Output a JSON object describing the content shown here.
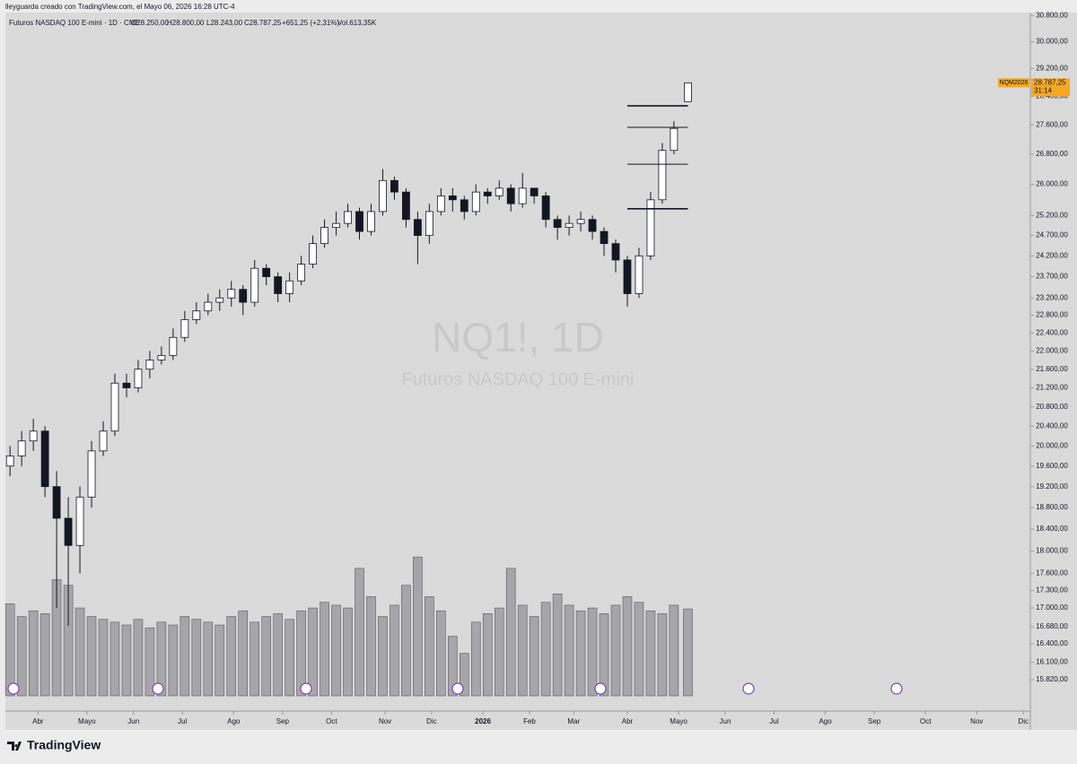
{
  "header": {
    "credit": "lleyguarda creado con TradingView.com, el Mayo 06, 2026 16:28 UTC-4",
    "symbol": "Futuros NASDAQ 100 E-mini · 1D · CME",
    "open": "O28.250,00",
    "high": "H28.800,00",
    "low": "L28.243,00",
    "close": "C28.787,25",
    "change": "+651,25 (+2,31%)",
    "volume": "Vol.613,35K"
  },
  "watermark": {
    "title": "NQ1!, 1D",
    "subtitle": "Futuros NASDAQ 100 E-mini"
  },
  "price_tag": {
    "symbol": "NQM2026",
    "price": "28.787,25",
    "countdown": "31:14"
  },
  "footer": {
    "brand": "TradingView"
  },
  "chart_data": {
    "type": "candlestick",
    "log_scale": true,
    "grid": false,
    "up_color": "#ffffff",
    "down_color": "#131722",
    "volume_color": "#a6a6aa",
    "xlim": [
      -2,
      438
    ],
    "xticks": [
      {
        "value": 12,
        "label": "Abr"
      },
      {
        "value": 33,
        "label": "Mayo"
      },
      {
        "value": 53,
        "label": "Jun"
      },
      {
        "value": 74,
        "label": "Jul"
      },
      {
        "value": 96,
        "label": "Ago"
      },
      {
        "value": 117,
        "label": "Sep"
      },
      {
        "value": 138,
        "label": "Oct"
      },
      {
        "value": 161,
        "label": "Nov"
      },
      {
        "value": 181,
        "label": "Dic"
      },
      {
        "value": 203,
        "label": "2026"
      },
      {
        "value": 223,
        "label": "Feb"
      },
      {
        "value": 242,
        "label": "Mar"
      },
      {
        "value": 265,
        "label": "Abr"
      },
      {
        "value": 287,
        "label": "Mayo"
      },
      {
        "value": 307,
        "label": "Jun"
      },
      {
        "value": 328,
        "label": "Jul"
      },
      {
        "value": 350,
        "label": "Ago"
      },
      {
        "value": 371,
        "label": "Sep"
      },
      {
        "value": 393,
        "label": "Oct"
      },
      {
        "value": 415,
        "label": "Nov"
      },
      {
        "value": 435,
        "label": "Dic"
      }
    ],
    "ylim": [
      15440,
      31000
    ],
    "yticks": [
      {
        "value": 30800,
        "label": "30.800,00"
      },
      {
        "value": 30000,
        "label": "30.000,00"
      },
      {
        "value": 29200,
        "label": "29.200,00"
      },
      {
        "value": 28400,
        "label": "28.400,00"
      },
      {
        "value": 27600,
        "label": "27.600,00"
      },
      {
        "value": 26800,
        "label": "26.800,00"
      },
      {
        "value": 26000,
        "label": "26.000,00"
      },
      {
        "value": 25200,
        "label": "25.200,00"
      },
      {
        "value": 24700,
        "label": "24.700,00"
      },
      {
        "value": 24200,
        "label": "24.200,00"
      },
      {
        "value": 23700,
        "label": "23.700,00"
      },
      {
        "value": 23200,
        "label": "23.200,00"
      },
      {
        "value": 22800,
        "label": "22.800,00"
      },
      {
        "value": 22400,
        "label": "22.400,00"
      },
      {
        "value": 22000,
        "label": "22.000,00"
      },
      {
        "value": 21600,
        "label": "21.600,00"
      },
      {
        "value": 21200,
        "label": "21.200,00"
      },
      {
        "value": 20800,
        "label": "20.800,00"
      },
      {
        "value": 20400,
        "label": "20.400,00"
      },
      {
        "value": 20000,
        "label": "20.000,00"
      },
      {
        "value": 19600,
        "label": "19.600,00"
      },
      {
        "value": 19200,
        "label": "19.200,00"
      },
      {
        "value": 18800,
        "label": "18.800,00"
      },
      {
        "value": 18400,
        "label": "18.400,00"
      },
      {
        "value": 18000,
        "label": "18.000,00"
      },
      {
        "value": 17600,
        "label": "17.600,00"
      },
      {
        "value": 17300,
        "label": "17.300,00"
      },
      {
        "value": 17000,
        "label": "17.000,00"
      },
      {
        "value": 16680,
        "label": "16.680,00"
      },
      {
        "value": 16400,
        "label": "16.400,00"
      },
      {
        "value": 16100,
        "label": "16.100,00"
      },
      {
        "value": 15820,
        "label": "15.820,00"
      }
    ],
    "volume_lim": [
      0,
      1000
    ],
    "x": [
      0,
      5,
      10,
      15,
      20,
      25,
      30,
      35,
      40,
      45,
      50,
      55,
      60,
      65,
      70,
      75,
      80,
      85,
      90,
      95,
      100,
      105,
      110,
      115,
      120,
      125,
      130,
      135,
      140,
      145,
      150,
      155,
      160,
      165,
      170,
      175,
      180,
      185,
      190,
      195,
      200,
      205,
      210,
      215,
      220,
      225,
      230,
      235,
      240,
      245,
      250,
      255,
      260,
      265,
      270,
      275,
      280,
      285,
      291
    ],
    "open": [
      19600,
      19800,
      20100,
      20300,
      19200,
      18600,
      18100,
      19000,
      19900,
      20300,
      21300,
      21200,
      21600,
      21800,
      21900,
      22300,
      22700,
      22900,
      23100,
      23200,
      23400,
      23100,
      23900,
      23700,
      23300,
      23600,
      24000,
      24500,
      24900,
      25000,
      25300,
      24800,
      25300,
      26100,
      25800,
      25100,
      24700,
      25300,
      25700,
      25600,
      25300,
      25800,
      25700,
      25900,
      25500,
      25900,
      25700,
      25100,
      24900,
      25000,
      25100,
      24800,
      24500,
      24100,
      23300,
      24200,
      25600,
      26900,
      28250
    ],
    "high": [
      20000,
      20300,
      20550,
      20400,
      19500,
      19000,
      19200,
      20100,
      20500,
      21500,
      21500,
      21800,
      22000,
      22100,
      22500,
      22900,
      23100,
      23300,
      23400,
      23600,
      23500,
      24100,
      24000,
      23800,
      23800,
      24200,
      24700,
      25100,
      25300,
      25500,
      25400,
      25500,
      26400,
      26200,
      25900,
      25300,
      25500,
      25900,
      25900,
      25700,
      26000,
      25900,
      26100,
      26000,
      26300,
      25900,
      25800,
      25200,
      25200,
      25300,
      25200,
      24900,
      24600,
      24200,
      24400,
      25800,
      27100,
      27700,
      28800
    ],
    "low": [
      19400,
      19600,
      19900,
      19000,
      17000,
      16700,
      17600,
      18800,
      19800,
      20200,
      21000,
      21100,
      21400,
      21700,
      21800,
      22200,
      22600,
      22800,
      22900,
      23000,
      22800,
      23000,
      23500,
      23100,
      23100,
      23500,
      23900,
      24400,
      24700,
      24900,
      24600,
      24700,
      25200,
      25600,
      24900,
      24000,
      24500,
      25200,
      25300,
      25100,
      25200,
      25500,
      25600,
      25300,
      25400,
      25500,
      24900,
      24600,
      24700,
      24800,
      24600,
      24200,
      23800,
      23000,
      23200,
      24100,
      25500,
      26800,
      28243
    ],
    "close": [
      19800,
      20100,
      20300,
      19200,
      18600,
      18100,
      19000,
      19900,
      20300,
      21300,
      21200,
      21600,
      21800,
      21900,
      22300,
      22700,
      22900,
      23100,
      23200,
      23400,
      23100,
      23900,
      23700,
      23300,
      23600,
      24000,
      24500,
      24900,
      25000,
      25300,
      24800,
      25300,
      26100,
      25800,
      25100,
      24700,
      25300,
      25700,
      25600,
      25300,
      25800,
      25700,
      25900,
      25500,
      25900,
      25700,
      25100,
      24900,
      25000,
      25100,
      24800,
      24500,
      24100,
      23300,
      24200,
      25600,
      26900,
      27500,
      28787.25
    ],
    "volume": [
      650,
      560,
      600,
      580,
      820,
      780,
      620,
      560,
      540,
      520,
      500,
      540,
      480,
      520,
      500,
      560,
      540,
      520,
      500,
      560,
      600,
      520,
      560,
      580,
      540,
      600,
      620,
      660,
      640,
      620,
      900,
      700,
      560,
      640,
      780,
      980,
      700,
      600,
      420,
      300,
      520,
      580,
      620,
      900,
      640,
      560,
      660,
      720,
      640,
      600,
      620,
      580,
      640,
      700,
      660,
      600,
      580,
      640,
      613.35
    ],
    "levels": [
      28130,
      27530,
      26530,
      25370
    ],
    "levels_from": 265,
    "levels_to": 291
  }
}
